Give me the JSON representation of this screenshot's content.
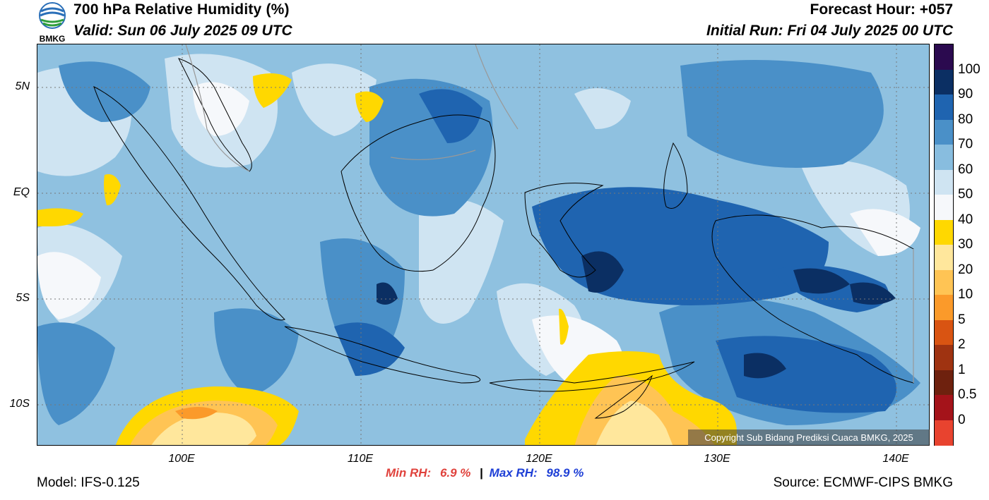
{
  "header": {
    "title": "700 hPa Relative Humidity (%)",
    "valid": "Valid: Sun 06 July 2025 09 UTC",
    "forecast_hour": "Forecast Hour: +057",
    "initial_run": "Initial Run: Fri 04 July 2025 00 UTC"
  },
  "logo": {
    "text": "BMKG",
    "icon": "bmkg-logo-icon"
  },
  "map": {
    "lat_labels": [
      "5N",
      "EQ",
      "5S",
      "10S"
    ],
    "lon_labels": [
      "100E",
      "110E",
      "120E",
      "130E",
      "140E"
    ],
    "copyright": "Copyright Sub Bidang Prediksi Cuaca BMKG, 2025"
  },
  "stats": {
    "min_label": "Min RH:",
    "min_value": "6.9 %",
    "separator": "|",
    "max_label": "Max RH:",
    "max_value": "98.9 %"
  },
  "footer": {
    "model": "Model: IFS-0.125",
    "source": "Source: ECMWF-CIPS BMKG"
  },
  "colorbar": {
    "labels": [
      "100",
      "90",
      "80",
      "70",
      "60",
      "50",
      "40",
      "30",
      "20",
      "10",
      "5",
      "2",
      "1",
      "0.5",
      "0"
    ],
    "colors": [
      "#2b0a4f",
      "#0b2f63",
      "#1f64b0",
      "#4a90c8",
      "#88bddf",
      "#cfe4f2",
      "#f6f8fb",
      "#ffd800",
      "#ffe79c",
      "#ffc454",
      "#fb9a2a",
      "#d95412",
      "#9f3311",
      "#6e210e",
      "#a4131a",
      "#e8432f"
    ]
  }
}
